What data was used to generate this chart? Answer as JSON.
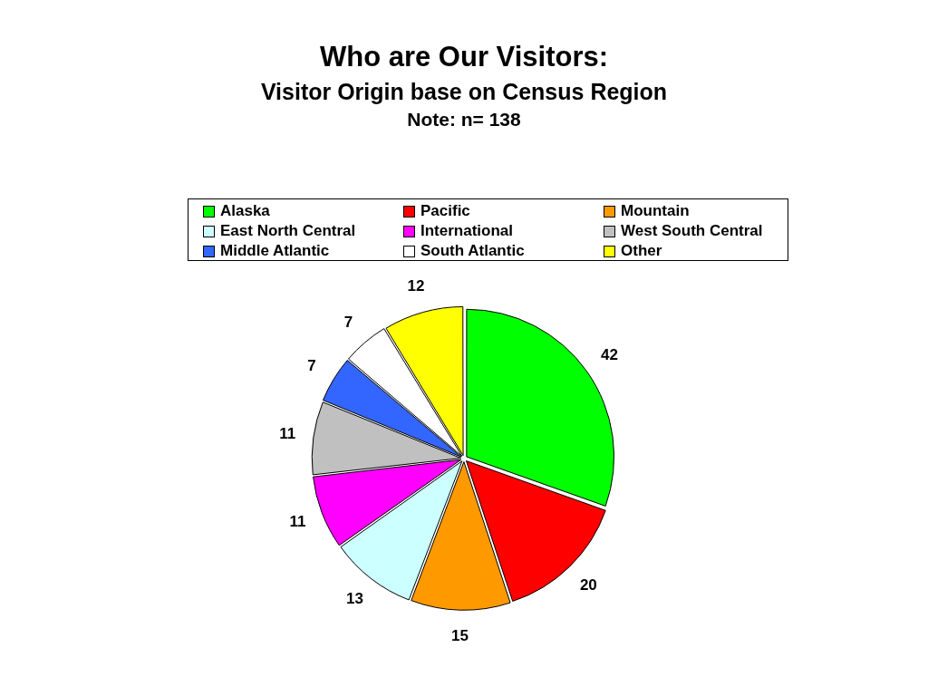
{
  "chart_data": {
    "type": "pie",
    "title": "Who are Our Visitors:",
    "subtitle": "Visitor Origin base on Census Region",
    "annotations": [
      "Note: n= 138"
    ],
    "categories": [
      "Alaska",
      "Pacific",
      "Mountain",
      "East North Central",
      "International",
      "West South Central",
      "Middle Atlantic",
      "South Atlantic",
      "Other"
    ],
    "values": [
      42,
      20,
      15,
      13,
      11,
      11,
      7,
      7,
      12
    ],
    "colors": [
      "#00ff00",
      "#ff0000",
      "#ff9900",
      "#ccffff",
      "#ff00ff",
      "#c0c0c0",
      "#3366ff",
      "#ffffff",
      "#ffff00"
    ],
    "data_labels": true,
    "legend": "top"
  }
}
